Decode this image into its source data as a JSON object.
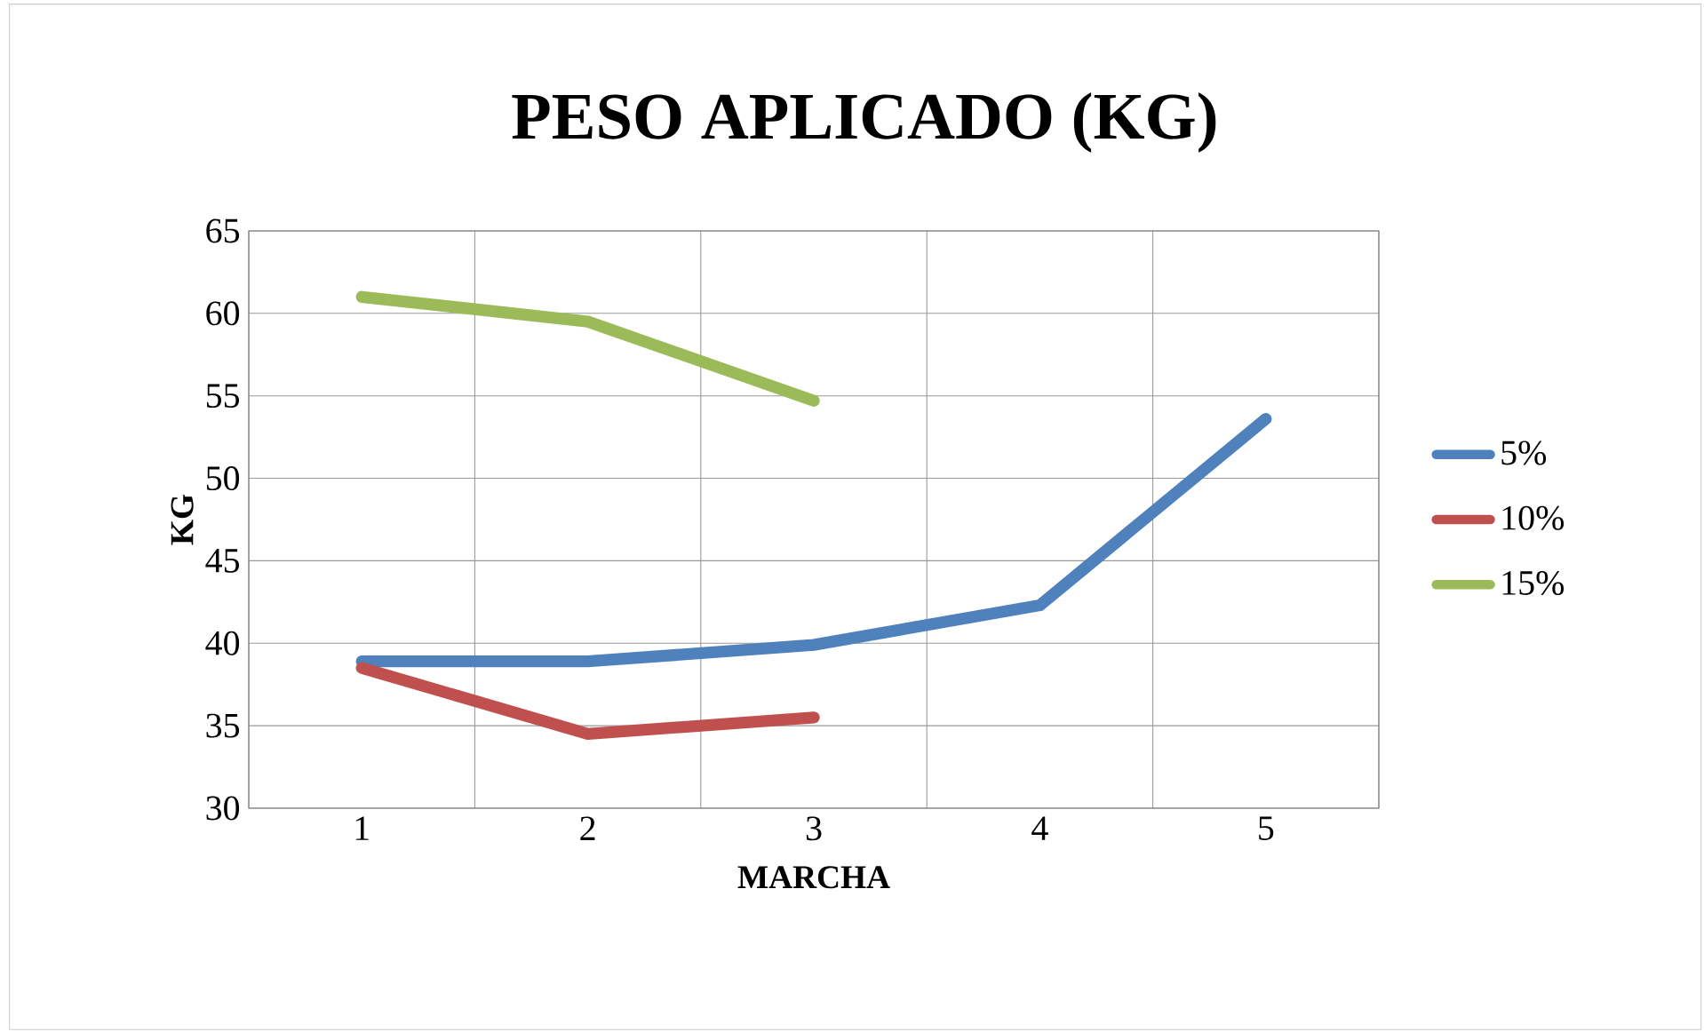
{
  "chart_data": {
    "type": "line",
    "title": "PESO APLICADO (KG)",
    "xlabel": "MARCHA",
    "ylabel": "KG",
    "categories": [
      "1",
      "2",
      "3",
      "4",
      "5"
    ],
    "series": [
      {
        "name": "5%",
        "color": "#4f81bd",
        "values": [
          38.9,
          38.9,
          39.9,
          42.3,
          53.6
        ]
      },
      {
        "name": "10%",
        "color": "#c0504d",
        "values": [
          38.5,
          34.5,
          35.5,
          null,
          null
        ]
      },
      {
        "name": "15%",
        "color": "#9bbb59",
        "values": [
          61,
          59.5,
          54.7,
          null,
          null
        ]
      }
    ],
    "ylim": [
      30,
      65
    ],
    "yticks": [
      30,
      35,
      40,
      45,
      50,
      55,
      60,
      65
    ],
    "grid": true,
    "legend": "right",
    "marker": "none",
    "line_style": "solid"
  }
}
